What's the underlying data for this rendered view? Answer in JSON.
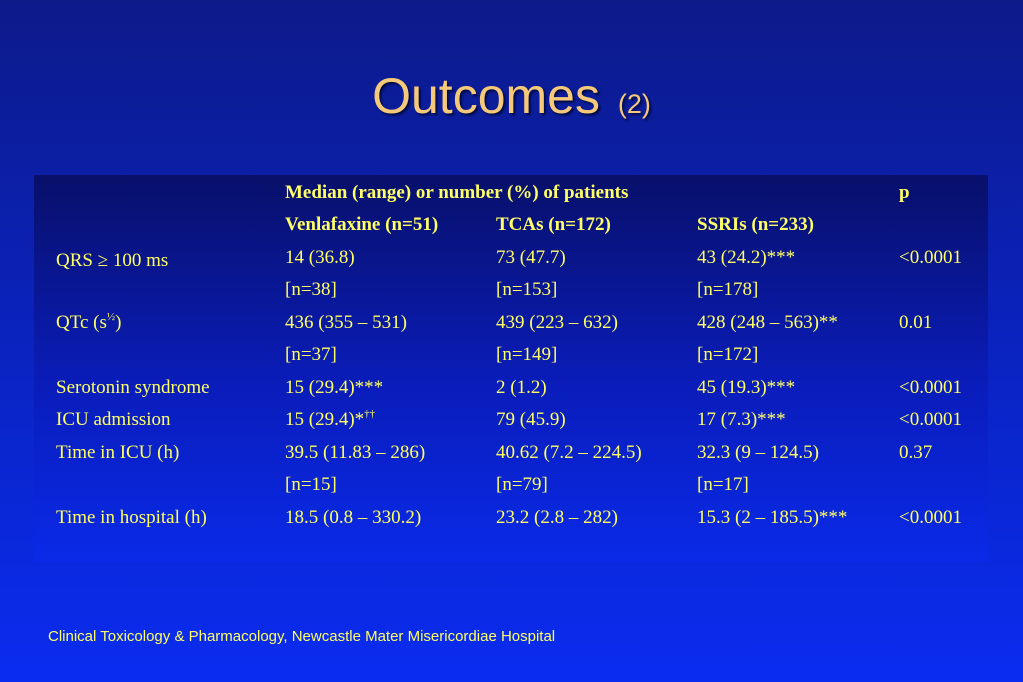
{
  "slide": {
    "title": "Outcomes",
    "title_suffix": "(2)",
    "footer": "Clinical Toxicology & Pharmacology, Newcastle Mater Misericordiae Hospital"
  },
  "table": {
    "header_main": "Median (range) or number (%) of patients",
    "header_p": "p",
    "columns": [
      "Venlafaxine (n=51)",
      "TCAs (n=172)",
      "SSRIs (n=233)"
    ],
    "rows": {
      "qrs": {
        "label": "QRS ≥ 100 ms",
        "venlafaxine": "14 (36.8)",
        "tcas": "73 (47.7)",
        "ssris": "43 (24.2)***",
        "p": "<0.0001"
      },
      "qrs_n": {
        "venlafaxine": "[n=38]",
        "tcas": "[n=153]",
        "ssris": "[n=178]"
      },
      "qtc": {
        "label_main": "QTc (s",
        "label_sup": "½",
        "label_end": ")",
        "venlafaxine": "436 (355 – 531)",
        "tcas": "439 (223 – 632)",
        "ssris": "428 (248 – 563)**",
        "p": "0.01"
      },
      "qtc_n": {
        "venlafaxine": "[n=37]",
        "tcas": "[n=149]",
        "ssris": "[n=172]"
      },
      "serotonin": {
        "label": "Serotonin syndrome",
        "venlafaxine": "15 (29.4)***",
        "tcas": "2 (1.2)",
        "ssris": "45 (19.3)***",
        "p": "<0.0001"
      },
      "icu": {
        "label": "ICU admission",
        "venlafaxine_main": "15 (29.4)*",
        "venlafaxine_sup": "††",
        "tcas": "79 (45.9)",
        "ssris": "17 (7.3)***",
        "p": "<0.0001"
      },
      "icu_time": {
        "label": "Time in ICU (h)",
        "venlafaxine": "39.5 (11.83 – 286)",
        "tcas": "40.62 (7.2 – 224.5)",
        "ssris": "32.3 (9 – 124.5)",
        "p": "0.37"
      },
      "icu_time_n": {
        "venlafaxine": "[n=15]",
        "tcas": "[n=79]",
        "ssris": "[n=17]"
      },
      "hospital_time": {
        "label": "Time in hospital (h)",
        "venlafaxine": "18.5 (0.8 – 330.2)",
        "tcas": "23.2 (2.8 – 282)",
        "ssris": "15.3 (2 – 185.5)***",
        "p": "<0.0001"
      }
    }
  }
}
